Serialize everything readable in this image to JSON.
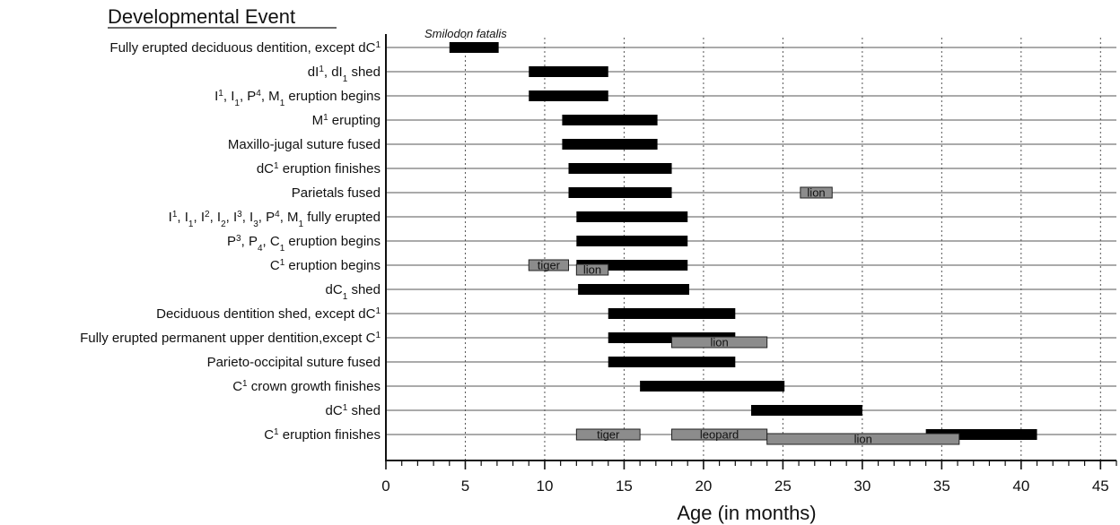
{
  "chart_data": {
    "type": "gantt",
    "column_title": "Developmental Event",
    "species_label": "Smilodon fatalis",
    "xlabel": "Age (in months)",
    "xlim": [
      0,
      46
    ],
    "xticks": [
      0,
      5,
      10,
      15,
      20,
      25,
      30,
      35,
      40,
      45
    ],
    "grid": "vertical dotted every 5 months, horizontal line per row",
    "events": [
      {
        "label": [
          {
            "t": "Fully erupted deciduous dentition, except dC"
          },
          {
            "t": "1",
            "s": "sup"
          }
        ],
        "range": [
          4,
          7.1
        ],
        "comparisons": []
      },
      {
        "label": [
          {
            "t": "dI"
          },
          {
            "t": "1",
            "s": "sup"
          },
          {
            "t": ", dI"
          },
          {
            "t": "1",
            "s": "sub"
          },
          {
            "t": " shed"
          }
        ],
        "range": [
          9,
          14
        ],
        "comparisons": []
      },
      {
        "label": [
          {
            "t": "I"
          },
          {
            "t": "1",
            "s": "sup"
          },
          {
            "t": ", I"
          },
          {
            "t": "1",
            "s": "sub"
          },
          {
            "t": ", P"
          },
          {
            "t": "4",
            "s": "sup"
          },
          {
            "t": ", M"
          },
          {
            "t": "1",
            "s": "sub"
          },
          {
            "t": " eruption begins"
          }
        ],
        "range": [
          9,
          14
        ],
        "comparisons": []
      },
      {
        "label": [
          {
            "t": "M"
          },
          {
            "t": "1",
            "s": "sup"
          },
          {
            "t": " erupting"
          }
        ],
        "range": [
          11.1,
          17.1
        ],
        "comparisons": []
      },
      {
        "label": [
          {
            "t": "Maxillo-jugal suture fused"
          }
        ],
        "range": [
          11.1,
          17.1
        ],
        "comparisons": []
      },
      {
        "label": [
          {
            "t": "dC"
          },
          {
            "t": "1",
            "s": "sup"
          },
          {
            "t": " eruption finishes"
          }
        ],
        "range": [
          11.5,
          18
        ],
        "comparisons": []
      },
      {
        "label": [
          {
            "t": "Parietals fused"
          }
        ],
        "range": [
          11.5,
          18
        ],
        "comparisons": [
          {
            "name": "lion",
            "range": [
              26.1,
              28.1
            ],
            "offset": 0
          }
        ]
      },
      {
        "label": [
          {
            "t": "I"
          },
          {
            "t": "1",
            "s": "sup"
          },
          {
            "t": ", I"
          },
          {
            "t": "1",
            "s": "sub"
          },
          {
            "t": ", I"
          },
          {
            "t": "2",
            "s": "sup"
          },
          {
            "t": ", I"
          },
          {
            "t": "2",
            "s": "sub"
          },
          {
            "t": ", I"
          },
          {
            "t": "3",
            "s": "sup"
          },
          {
            "t": ", I"
          },
          {
            "t": "3",
            "s": "sub"
          },
          {
            "t": ", P"
          },
          {
            "t": "4",
            "s": "sup"
          },
          {
            "t": ", M"
          },
          {
            "t": "1",
            "s": "sub"
          },
          {
            "t": " fully erupted"
          }
        ],
        "range": [
          12,
          19
        ],
        "comparisons": []
      },
      {
        "label": [
          {
            "t": "P"
          },
          {
            "t": "3",
            "s": "sup"
          },
          {
            "t": ", P"
          },
          {
            "t": "4",
            "s": "sub"
          },
          {
            "t": ", C"
          },
          {
            "t": "1",
            "s": "sub"
          },
          {
            "t": " eruption begins"
          }
        ],
        "range": [
          12,
          19
        ],
        "comparisons": []
      },
      {
        "label": [
          {
            "t": "C"
          },
          {
            "t": "1",
            "s": "sup"
          },
          {
            "t": " eruption begins"
          }
        ],
        "range": [
          12,
          19
        ],
        "comparisons": [
          {
            "name": "tiger",
            "range": [
              9,
              11.5
            ],
            "offset": 0
          },
          {
            "name": "lion",
            "range": [
              12,
              14
            ],
            "offset": 1
          }
        ]
      },
      {
        "label": [
          {
            "t": "dC"
          },
          {
            "t": "1",
            "s": "sub"
          },
          {
            "t": " shed"
          }
        ],
        "range": [
          12.1,
          19.1
        ],
        "comparisons": []
      },
      {
        "label": [
          {
            "t": "Deciduous dentition shed, except dC"
          },
          {
            "t": "1",
            "s": "sup"
          }
        ],
        "range": [
          14,
          22
        ],
        "comparisons": []
      },
      {
        "label": [
          {
            "t": "Fully erupted permanent upper dentition,except C"
          },
          {
            "t": "1",
            "s": "sup"
          }
        ],
        "range": [
          14,
          22
        ],
        "comparisons": [
          {
            "name": "lion",
            "range": [
              18,
              24
            ],
            "offset": 1
          }
        ]
      },
      {
        "label": [
          {
            "t": "Parieto-occipital suture fused"
          }
        ],
        "range": [
          14,
          22
        ],
        "comparisons": []
      },
      {
        "label": [
          {
            "t": "C"
          },
          {
            "t": "1",
            "s": "sup"
          },
          {
            "t": " crown growth finishes"
          }
        ],
        "range": [
          16,
          25.1
        ],
        "comparisons": []
      },
      {
        "label": [
          {
            "t": "dC"
          },
          {
            "t": "1",
            "s": "sup"
          },
          {
            "t": " shed"
          }
        ],
        "range": [
          23,
          30
        ],
        "comparisons": []
      },
      {
        "label": [
          {
            "t": "C"
          },
          {
            "t": "1",
            "s": "sup"
          },
          {
            "t": " eruption finishes"
          }
        ],
        "range": [
          34,
          41
        ],
        "comparisons": [
          {
            "name": "tiger",
            "range": [
              12,
              16
            ],
            "offset": 0
          },
          {
            "name": "leopard",
            "range": [
              18,
              24
            ],
            "offset": 0
          },
          {
            "name": "lion",
            "range": [
              24,
              36.1
            ],
            "offset": 1
          }
        ]
      }
    ],
    "colors": {
      "smilodon_bar": "#000000",
      "comparison_bar": "#8c8c8c",
      "comparison_border": "#222222",
      "row_line": "#555555",
      "grid": "#555555"
    }
  }
}
